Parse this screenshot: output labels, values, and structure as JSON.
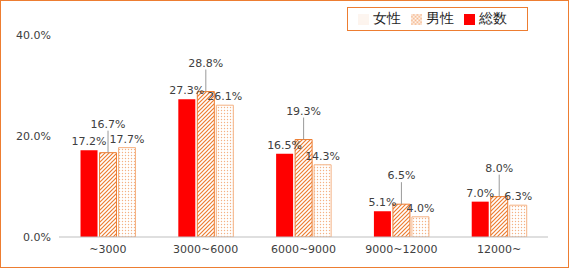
{
  "chart_data": {
    "type": "bar",
    "categories": [
      "~3000",
      "3000~6000",
      "6000~9000",
      "9000~12000",
      "12000~"
    ],
    "series": [
      {
        "name": "総数",
        "color": "#ff0000",
        "values": [
          17.2,
          27.3,
          16.5,
          5.1,
          7.0
        ],
        "value_labels": [
          "17.2%",
          "27.3%",
          "16.5%",
          "5.1%",
          "7.0%"
        ]
      },
      {
        "name": "男性",
        "color": "#ed7d31",
        "values": [
          16.7,
          28.8,
          19.3,
          6.5,
          8.0
        ],
        "value_labels": [
          "16.7%",
          "28.8%",
          "19.3%",
          "6.5%",
          "8.0%"
        ]
      },
      {
        "name": "女性",
        "color": "#f4b183",
        "values": [
          17.7,
          26.1,
          14.3,
          4.0,
          6.3
        ],
        "value_labels": [
          "17.7%",
          "26.1%",
          "14.3%",
          "4.0%",
          "6.3%"
        ]
      }
    ],
    "ylim": [
      0,
      40
    ],
    "yticks": [
      {
        "value": 0,
        "label": "0.0%"
      },
      {
        "value": 20,
        "label": "20.0%"
      },
      {
        "value": 40,
        "label": "40.0%"
      }
    ],
    "grid": false,
    "legend": "top-right",
    "data_labels": true
  }
}
